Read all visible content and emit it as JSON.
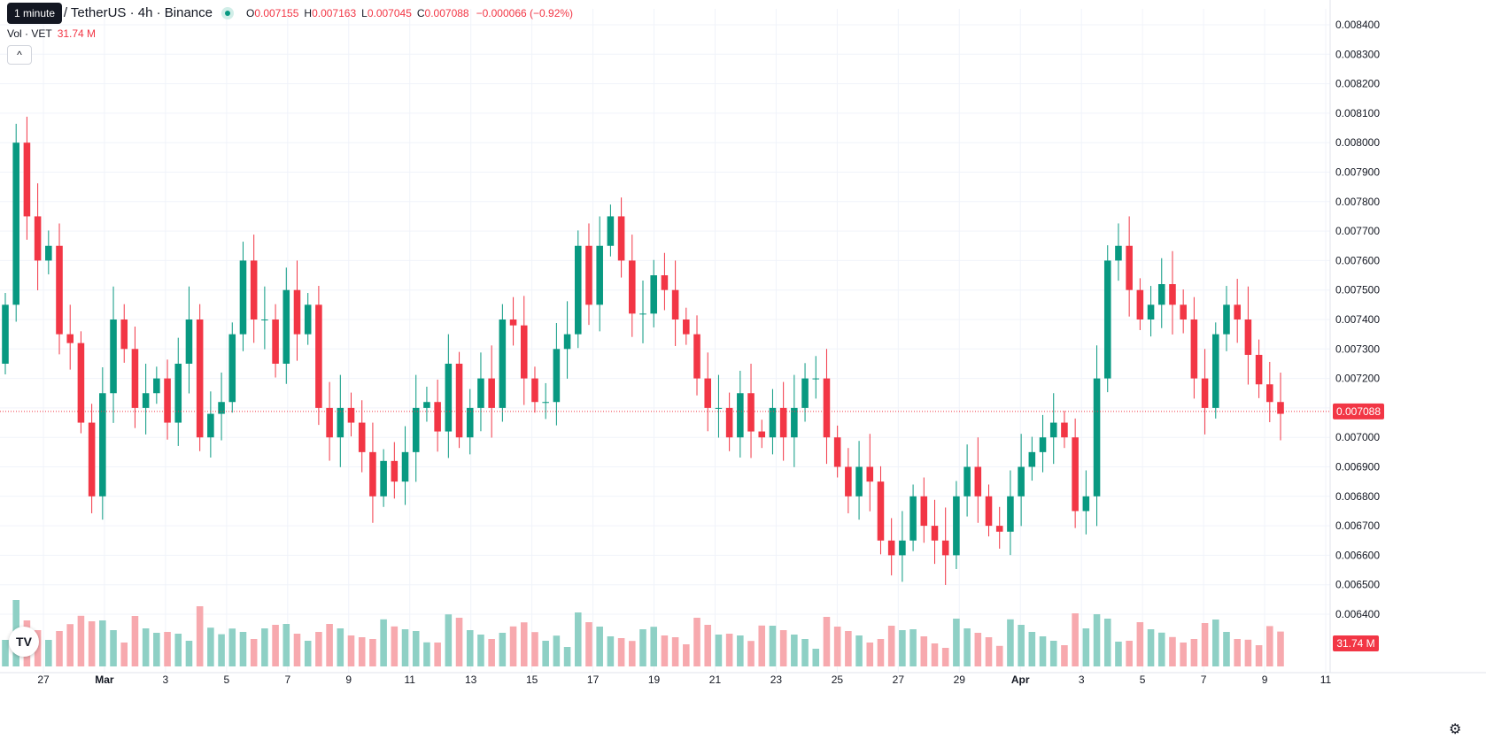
{
  "header": {
    "tooltip": "1 minute",
    "symbol": "in / TetherUS · 4h · Binance",
    "ohlc": [
      {
        "key": "O",
        "value": "0.007155"
      },
      {
        "key": "H",
        "value": "0.007163"
      },
      {
        "key": "L",
        "value": "0.007045"
      },
      {
        "key": "C",
        "value": "0.007088"
      }
    ],
    "change": "−0.000066 (−0.92%)"
  },
  "volume_legend": {
    "label": "Vol · VET",
    "value": "31.74 M"
  },
  "icons": {
    "collapse": "chevron-up-icon",
    "logo": "tradingview-logo-icon",
    "settings": "gear-icon"
  },
  "colors": {
    "up": "#089981",
    "down": "#f23645",
    "up_vol": "#8ed0c5",
    "down_vol": "#f7a9ae",
    "grid": "#f0f3fa"
  },
  "chart_data": {
    "type": "candlestick",
    "timeframe": "4h",
    "ylim": [
      0.0064,
      0.0084
    ],
    "y_ticks": [
      "0.006400",
      "0.006500",
      "0.006600",
      "0.006700",
      "0.006800",
      "0.006900",
      "0.007000",
      "0.007100",
      "0.007200",
      "0.007300",
      "0.007400",
      "0.007500",
      "0.007600",
      "0.007700",
      "0.007800",
      "0.007900",
      "0.008000",
      "0.008100",
      "0.008200",
      "0.008300",
      "0.008400"
    ],
    "x_ticks": [
      "27",
      "Mar",
      "3",
      "5",
      "7",
      "9",
      "11",
      "13",
      "15",
      "17",
      "19",
      "21",
      "23",
      "25",
      "27",
      "29",
      "Apr",
      "3",
      "5",
      "7",
      "9",
      "11"
    ],
    "last_price": "0.007088",
    "last_volume": "31.74 M",
    "close_series": [
      0.00745,
      0.008,
      0.00775,
      0.0076,
      0.00765,
      0.00735,
      0.00732,
      0.00705,
      0.0068,
      0.00715,
      0.0074,
      0.0073,
      0.0071,
      0.00715,
      0.0072,
      0.00705,
      0.00725,
      0.0074,
      0.007,
      0.00708,
      0.00712,
      0.00735,
      0.0076,
      0.0074,
      0.0074,
      0.00725,
      0.0075,
      0.00735,
      0.00745,
      0.0071,
      0.007,
      0.0071,
      0.00705,
      0.00695,
      0.0068,
      0.00692,
      0.00685,
      0.00695,
      0.0071,
      0.00712,
      0.00702,
      0.00725,
      0.007,
      0.0071,
      0.0072,
      0.0071,
      0.0074,
      0.00738,
      0.0072,
      0.00712,
      0.00712,
      0.0073,
      0.00735,
      0.00765,
      0.00745,
      0.00765,
      0.00775,
      0.0076,
      0.00742,
      0.00742,
      0.00755,
      0.0075,
      0.0074,
      0.00735,
      0.0072,
      0.0071,
      0.0071,
      0.007,
      0.00715,
      0.00702,
      0.007,
      0.0071,
      0.007,
      0.0071,
      0.0072,
      0.0072,
      0.007,
      0.0069,
      0.0068,
      0.0069,
      0.00685,
      0.00665,
      0.0066,
      0.00665,
      0.0068,
      0.0067,
      0.00665,
      0.0066,
      0.0068,
      0.0069,
      0.0068,
      0.0067,
      0.00668,
      0.0068,
      0.0069,
      0.00695,
      0.007,
      0.00705,
      0.007,
      0.00675,
      0.0068,
      0.0072,
      0.0076,
      0.00765,
      0.0075,
      0.0074,
      0.00745,
      0.00752,
      0.00745,
      0.0074,
      0.0072,
      0.0071,
      0.00735,
      0.00745,
      0.0074,
      0.00728,
      0.00718,
      0.00712,
      0.00708
    ],
    "volume_note": "Volume histogram; last bar 31.74 M"
  }
}
